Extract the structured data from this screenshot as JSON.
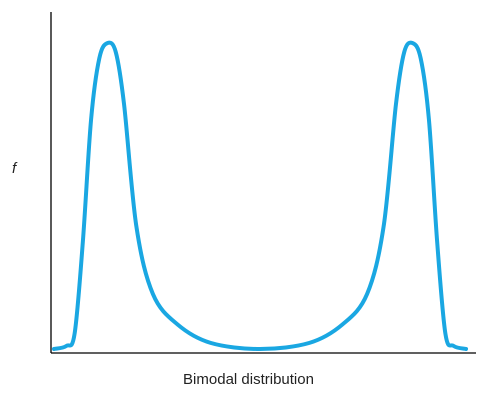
{
  "chart_data": {
    "type": "line",
    "title": "",
    "xlabel": "Bimodal distribution",
    "ylabel": "f",
    "grid": false,
    "ylim": [
      0,
      1
    ],
    "series": [
      {
        "color": "#1aa7e2",
        "points": [
          [
            0.0,
            0.0
          ],
          [
            0.03,
            0.01
          ],
          [
            0.05,
            0.05
          ],
          [
            0.07,
            0.35
          ],
          [
            0.09,
            0.75
          ],
          [
            0.11,
            0.95
          ],
          [
            0.13,
            1.0
          ],
          [
            0.15,
            0.97
          ],
          [
            0.17,
            0.8
          ],
          [
            0.2,
            0.4
          ],
          [
            0.24,
            0.18
          ],
          [
            0.3,
            0.08
          ],
          [
            0.38,
            0.02
          ],
          [
            0.5,
            0.0
          ],
          [
            0.62,
            0.02
          ],
          [
            0.7,
            0.08
          ],
          [
            0.76,
            0.18
          ],
          [
            0.8,
            0.4
          ],
          [
            0.83,
            0.8
          ],
          [
            0.85,
            0.97
          ],
          [
            0.87,
            1.0
          ],
          [
            0.89,
            0.95
          ],
          [
            0.91,
            0.75
          ],
          [
            0.93,
            0.35
          ],
          [
            0.95,
            0.05
          ],
          [
            0.97,
            0.01
          ],
          [
            1.0,
            0.0
          ]
        ]
      }
    ]
  },
  "colors": {
    "curve": "#1aa7e2",
    "axis": "#000000"
  }
}
